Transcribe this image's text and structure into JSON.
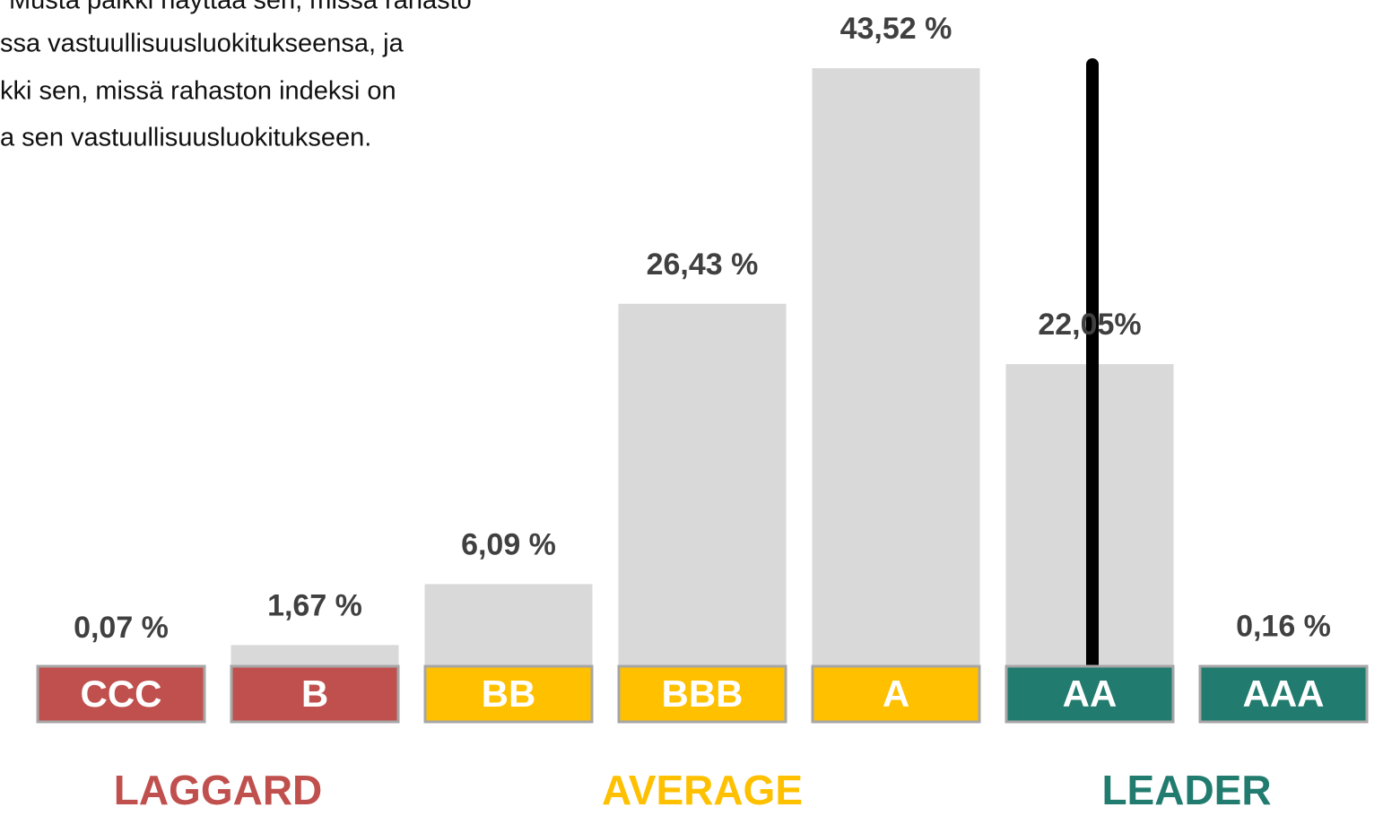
{
  "chart_data": {
    "type": "bar",
    "note": [
      "Musta palkki näyttää sen, missä rahasto",
      "ssa vastuullisuusluokitukseensa, ja",
      "kki sen, missä rahaston indeksi on",
      "a sen vastuullisuusluokitukseen."
    ],
    "categories": [
      "CCC",
      "B",
      "BB",
      "BBB",
      "A",
      "AA",
      "AAA"
    ],
    "values": [
      0.07,
      1.67,
      6.09,
      26.43,
      43.52,
      22.05,
      0.16
    ],
    "value_labels": [
      "0,07 %",
      "1,67 %",
      "6,09 %",
      "26,43 %",
      "43,52 %",
      "22,05%",
      "0,16 %"
    ],
    "color": "#d9d9d9",
    "category_colors": [
      "#c0504d",
      "#c0504d",
      "#ffc000",
      "#ffc000",
      "#ffc000",
      "#217b6e",
      "#217b6e"
    ],
    "groups": [
      {
        "label": "LAGGARD",
        "color": "#c0504d"
      },
      {
        "label": "AVERAGE",
        "color": "#ffc000"
      },
      {
        "label": "LEADER",
        "color": "#217b6e"
      }
    ]
  }
}
